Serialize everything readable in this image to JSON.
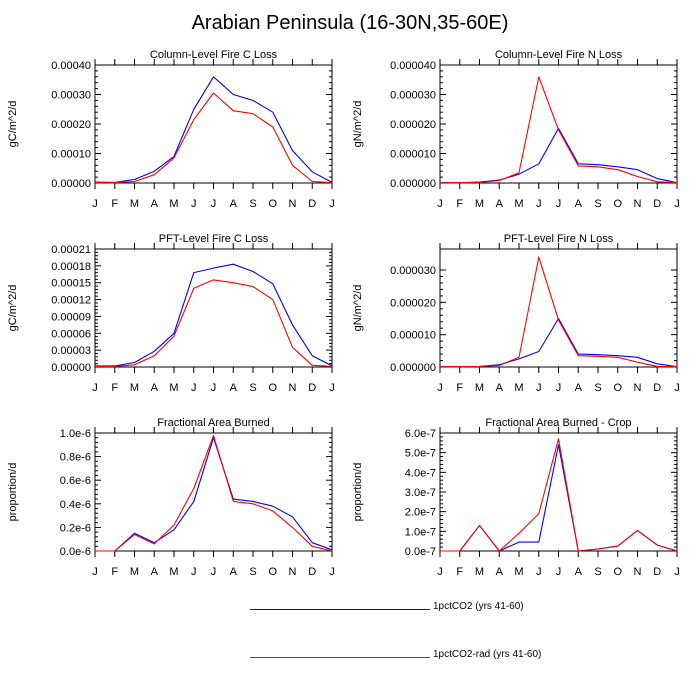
{
  "title": "Arabian Peninsula (16-30N,35-60E)",
  "colors": {
    "series_1": "#0000ff",
    "series_2": "#ff0000"
  },
  "legend": [
    {
      "label": "1pctCO2 (yrs 41-60)",
      "color": "#0000ff"
    },
    {
      "label": "1pctCO2-rad (yrs 41-60)",
      "color": "#ff0000"
    }
  ],
  "chart_data": [
    {
      "type": "line",
      "title": "Column-Level Fire C Loss",
      "ylabel": "gC/m^2/d",
      "categories": [
        "J",
        "F",
        "M",
        "A",
        "M",
        "J",
        "J",
        "A",
        "S",
        "O",
        "N",
        "D",
        "J"
      ],
      "ylim": [
        0,
        0.0004
      ],
      "yticks": [
        "0.00000",
        "0.00010",
        "0.00020",
        "0.00030",
        "0.00040"
      ],
      "series": [
        {
          "name": "1pctCO2 (yrs 41-60)",
          "color": "#0000ff",
          "values": [
            3e-06,
            2e-06,
            1.2e-05,
            4e-05,
            9e-05,
            0.00025,
            0.00036,
            0.0003,
            0.00028,
            0.00024,
            0.00011,
            3.8e-05,
            2e-06
          ]
        },
        {
          "name": "1pctCO2-rad (yrs 41-60)",
          "color": "#ff0000",
          "values": [
            2e-06,
            1e-06,
            5e-06,
            2.8e-05,
            8.5e-05,
            0.000215,
            0.000305,
            0.000245,
            0.000235,
            0.00019,
            6e-05,
            5e-06,
            1e-06
          ]
        }
      ]
    },
    {
      "type": "line",
      "title": "Column-Level Fire N Loss",
      "ylabel": "gN/m^2/d",
      "categories": [
        "J",
        "F",
        "M",
        "A",
        "M",
        "J",
        "J",
        "A",
        "S",
        "O",
        "N",
        "D",
        "J"
      ],
      "ylim": [
        0,
        4e-05
      ],
      "yticks": [
        "0.000000",
        "0.000010",
        "0.000020",
        "0.000030",
        "0.000040"
      ],
      "series": [
        {
          "name": "1pctCO2 (yrs 41-60)",
          "color": "#0000ff",
          "values": [
            1e-07,
            1e-07,
            3e-07,
            1e-06,
            3e-06,
            6.5e-06,
            1.85e-05,
            6.5e-06,
            6.2e-06,
            5.5e-06,
            4.5e-06,
            1.5e-06,
            1e-07
          ]
        },
        {
          "name": "1pctCO2-rad (yrs 41-60)",
          "color": "#ff0000",
          "values": [
            1e-07,
            1e-07,
            2e-07,
            8e-07,
            3.5e-06,
            3.6e-05,
            1.8e-05,
            5.8e-06,
            5.5e-06,
            4.5e-06,
            2.2e-06,
            4e-07,
            1e-07
          ]
        }
      ]
    },
    {
      "type": "line",
      "title": "PFT-Level Fire C Loss",
      "ylabel": "gC/m^2/d",
      "categories": [
        "J",
        "F",
        "M",
        "A",
        "M",
        "J",
        "J",
        "A",
        "S",
        "O",
        "N",
        "D",
        "J"
      ],
      "ylim": [
        0,
        0.00021
      ],
      "yticks": [
        "0.00000",
        "0.00003",
        "0.00006",
        "0.00009",
        "0.00012",
        "0.00015",
        "0.00018",
        "0.00021"
      ],
      "series": [
        {
          "name": "1pctCO2 (yrs 41-60)",
          "color": "#0000ff",
          "values": [
            2e-06,
            2e-06,
            8e-06,
            2.8e-05,
            6e-05,
            0.000168,
            0.000176,
            0.000183,
            0.00017,
            0.000148,
            7.5e-05,
            2e-05,
            2e-06
          ]
        },
        {
          "name": "1pctCO2-rad (yrs 41-60)",
          "color": "#ff0000",
          "values": [
            1e-06,
            1e-06,
            4e-06,
            2e-05,
            5.5e-05,
            0.00014,
            0.000155,
            0.00015,
            0.000143,
            0.00012,
            3.5e-05,
            3e-06,
            1e-06
          ]
        }
      ]
    },
    {
      "type": "line",
      "title": "PFT-Level Fire N Loss",
      "ylabel": "gN/m^2/d",
      "categories": [
        "J",
        "F",
        "M",
        "A",
        "M",
        "J",
        "J",
        "A",
        "S",
        "O",
        "N",
        "D",
        "J"
      ],
      "ylim": [
        0,
        3.65e-05
      ],
      "yticks": [
        "0.000000",
        "0.000010",
        "0.000020",
        "0.000030"
      ],
      "ytick_values": [
        0,
        1e-05,
        2e-05,
        3e-05
      ],
      "series": [
        {
          "name": "1pctCO2 (yrs 41-60)",
          "color": "#0000ff",
          "values": [
            1e-07,
            1e-07,
            2e-07,
            7e-07,
            2.5e-06,
            4.8e-06,
            1.5e-05,
            4e-06,
            3.8e-06,
            3.5e-06,
            3e-06,
            1e-06,
            1e-07
          ]
        },
        {
          "name": "1pctCO2-rad (yrs 41-60)",
          "color": "#ff0000",
          "values": [
            1e-07,
            1e-07,
            2e-07,
            5e-07,
            3e-06,
            3.4e-05,
            1.45e-05,
            3.5e-06,
            3.3e-06,
            3e-06,
            1.5e-06,
            2e-07,
            1e-07
          ]
        }
      ]
    },
    {
      "type": "line",
      "title": "Fractional Area Burned",
      "ylabel": "proportion/d",
      "categories": [
        "J",
        "F",
        "M",
        "A",
        "M",
        "J",
        "J",
        "A",
        "S",
        "O",
        "N",
        "D",
        "J"
      ],
      "ylim": [
        0,
        1e-06
      ],
      "yticks": [
        "0.0e-6",
        "0.2e-6",
        "0.4e-6",
        "0.6e-6",
        "0.8e-6",
        "1.0e-6"
      ],
      "series": [
        {
          "name": "1pctCO2 (yrs 41-60)",
          "color": "#0000ff",
          "values": [
            0.0,
            0.0,
            1.5e-07,
            7e-08,
            1.8e-07,
            4.2e-07,
            9.6e-07,
            4.4e-07,
            4.2e-07,
            3.8e-07,
            2.9e-07,
            7e-08,
            1e-08
          ]
        },
        {
          "name": "1pctCO2-rad (yrs 41-60)",
          "color": "#ff0000",
          "values": [
            0.0,
            0.0,
            1.4e-07,
            6e-08,
            2.2e-07,
            5.3e-07,
            9.8e-07,
            4.2e-07,
            4e-07,
            3.4e-07,
            2e-07,
            4e-08,
            0.0
          ]
        }
      ]
    },
    {
      "type": "line",
      "title": "Fractional Area Burned - Crop",
      "ylabel": "proportion/d",
      "categories": [
        "J",
        "F",
        "M",
        "A",
        "M",
        "J",
        "J",
        "A",
        "S",
        "O",
        "N",
        "D",
        "J"
      ],
      "ylim": [
        0,
        6e-07
      ],
      "yticks": [
        "0.0e-7",
        "1.0e-7",
        "2.0e-7",
        "3.0e-7",
        "4.0e-7",
        "5.0e-7",
        "6.0e-7"
      ],
      "series": [
        {
          "name": "1pctCO2 (yrs 41-60)",
          "color": "#0000ff",
          "values": [
            0.0,
            0.0,
            1.3e-07,
            0.0,
            4.5e-08,
            4.5e-08,
            5.4e-07,
            0.0,
            1e-08,
            2.5e-08,
            1.05e-07,
            3e-08,
            0.0
          ]
        },
        {
          "name": "1pctCO2-rad (yrs 41-60)",
          "color": "#ff0000",
          "values": [
            0.0,
            0.0,
            1.3e-07,
            0.0,
            9e-08,
            1.9e-07,
            5.7e-07,
            0.0,
            1e-08,
            2.5e-08,
            1.05e-07,
            3e-08,
            0.0
          ]
        }
      ]
    }
  ]
}
